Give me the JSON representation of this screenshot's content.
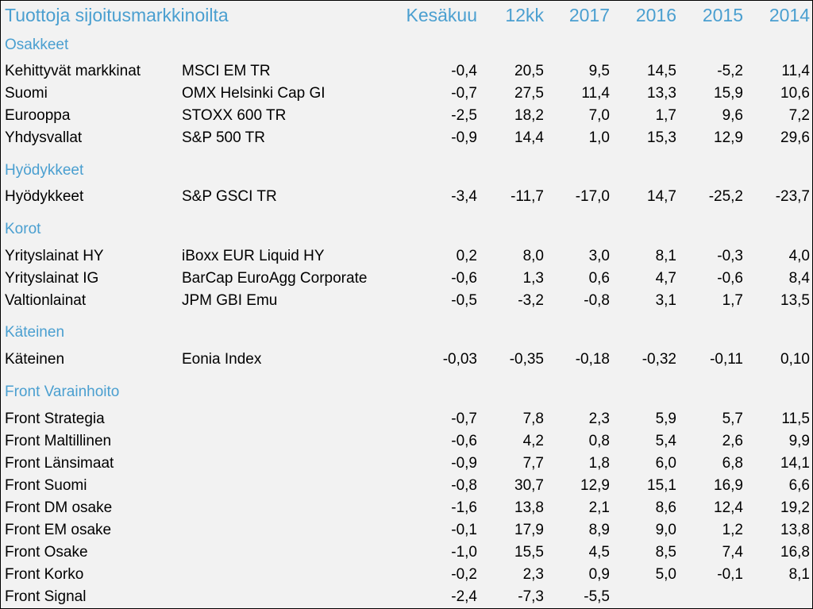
{
  "title": "Tuottoja sijoitusmarkkinoilta",
  "columns": [
    "Kesäkuu",
    "12kk",
    "2017",
    "2016",
    "2015",
    "2014"
  ],
  "sections": [
    {
      "label": "Osakkeet",
      "rows": [
        {
          "name": "Kehittyvät markkinat",
          "index": "MSCI EM TR",
          "values": [
            "-0,4",
            "20,5",
            "9,5",
            "14,5",
            "-5,2",
            "11,4"
          ]
        },
        {
          "name": "Suomi",
          "index": "OMX Helsinki Cap GI",
          "values": [
            "-0,7",
            "27,5",
            "11,4",
            "13,3",
            "15,9",
            "10,6"
          ]
        },
        {
          "name": "Eurooppa",
          "index": "STOXX 600 TR",
          "values": [
            "-2,5",
            "18,2",
            "7,0",
            "1,7",
            "9,6",
            "7,2"
          ]
        },
        {
          "name": "Yhdysvallat",
          "index": "S&P 500 TR",
          "values": [
            "-0,9",
            "14,4",
            "1,0",
            "15,3",
            "12,9",
            "29,6"
          ]
        }
      ]
    },
    {
      "label": "Hyödykkeet",
      "rows": [
        {
          "name": "Hyödykkeet",
          "index": "S&P GSCI TR",
          "values": [
            "-3,4",
            "-11,7",
            "-17,0",
            "14,7",
            "-25,2",
            "-23,7"
          ]
        }
      ]
    },
    {
      "label": "Korot",
      "rows": [
        {
          "name": "Yrityslainat HY",
          "index": "iBoxx EUR Liquid HY",
          "values": [
            "0,2",
            "8,0",
            "3,0",
            "8,1",
            "-0,3",
            "4,0"
          ]
        },
        {
          "name": "Yrityslainat IG",
          "index": "BarCap EuroAgg Corporate",
          "values": [
            "-0,6",
            "1,3",
            "0,6",
            "4,7",
            "-0,6",
            "8,4"
          ]
        },
        {
          "name": "Valtionlainat",
          "index": "JPM GBI Emu",
          "values": [
            "-0,5",
            "-3,2",
            "-0,8",
            "3,1",
            "1,7",
            "13,5"
          ]
        }
      ]
    },
    {
      "label": "Käteinen",
      "rows": [
        {
          "name": "Käteinen",
          "index": "Eonia Index",
          "values": [
            "-0,03",
            "-0,35",
            "-0,18",
            "-0,32",
            "-0,11",
            "0,10"
          ]
        }
      ]
    },
    {
      "label": "Front Varainhoito",
      "rows": [
        {
          "name": "Front Strategia",
          "index": "",
          "values": [
            "-0,7",
            "7,8",
            "2,3",
            "5,9",
            "5,7",
            "11,5"
          ]
        },
        {
          "name": "Front Maltillinen",
          "index": "",
          "values": [
            "-0,6",
            "4,2",
            "0,8",
            "5,4",
            "2,6",
            "9,9"
          ]
        },
        {
          "name": "Front Länsimaat",
          "index": "",
          "values": [
            "-0,9",
            "7,7",
            "1,8",
            "6,0",
            "6,8",
            "14,1"
          ]
        },
        {
          "name": "Front Suomi",
          "index": "",
          "values": [
            "-0,8",
            "30,7",
            "12,9",
            "15,1",
            "16,9",
            "6,6"
          ]
        },
        {
          "name": "Front DM osake",
          "index": "",
          "values": [
            "-1,6",
            "13,8",
            "2,1",
            "8,6",
            "12,4",
            "19,2"
          ]
        },
        {
          "name": "Front EM osake",
          "index": "",
          "values": [
            "-0,1",
            "17,9",
            "8,9",
            "9,0",
            "1,2",
            "13,8"
          ]
        },
        {
          "name": "Front Osake",
          "index": "",
          "values": [
            "-1,0",
            "15,5",
            "4,5",
            "8,5",
            "7,4",
            "16,8"
          ]
        },
        {
          "name": "Front Korko",
          "index": "",
          "values": [
            "-0,2",
            "2,3",
            "0,9",
            "5,0",
            "-0,1",
            "8,1"
          ]
        },
        {
          "name": "Front Signal",
          "index": "",
          "values": [
            "-2,4",
            "-7,3",
            "-5,5",
            "",
            "",
            ""
          ]
        }
      ]
    }
  ],
  "colors": {
    "accent": "#4a9fd0",
    "background": "#f2f2f2",
    "text": "#000000"
  }
}
